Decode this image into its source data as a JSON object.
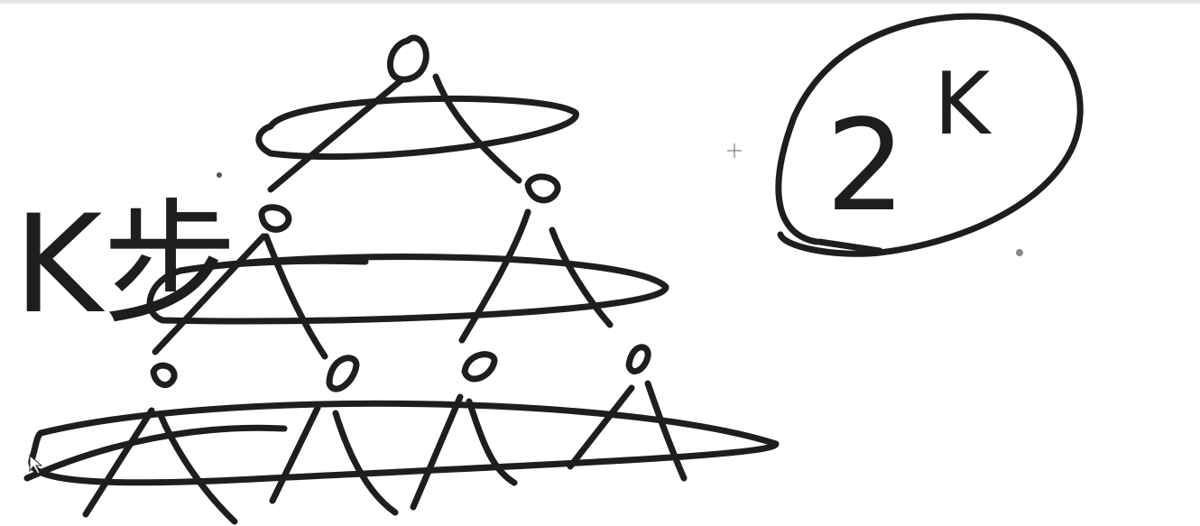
{
  "labels": {
    "steps": "K步",
    "base": "2",
    "exponent": "K"
  }
}
